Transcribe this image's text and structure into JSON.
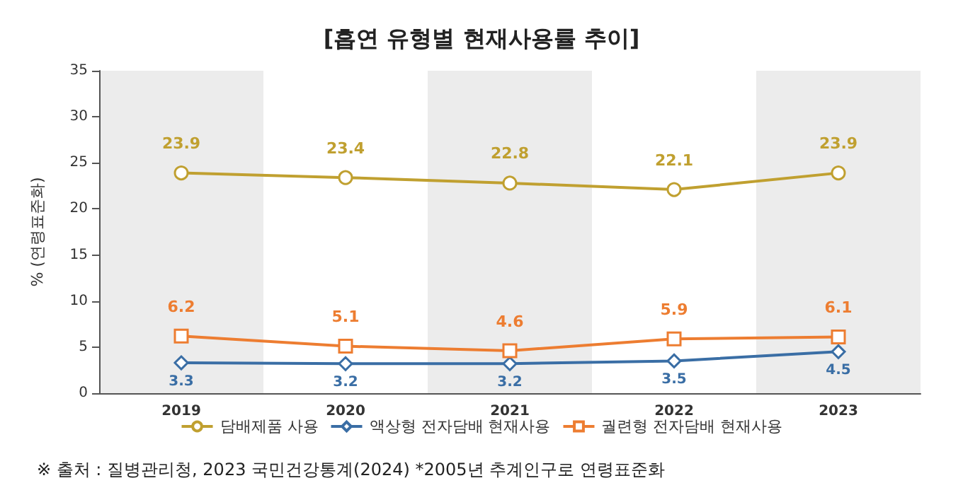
{
  "chart_data": {
    "type": "line",
    "title": "[흡연 유형별 현재사용률 추이]",
    "ylabel": "% (연령표준화)",
    "categories": [
      "2019",
      "2020",
      "2021",
      "2022",
      "2023"
    ],
    "series": [
      {
        "name": "담배제품 사용",
        "color": "#c0a030",
        "marker": "circle",
        "values": [
          23.9,
          23.4,
          22.8,
          22.1,
          23.9
        ]
      },
      {
        "name": "액상형 전자담배 현재사용",
        "color": "#3a6ea5",
        "marker": "diamond",
        "values": [
          3.3,
          3.2,
          3.2,
          3.5,
          4.5
        ]
      },
      {
        "name": "궐련형 전자담배 현재사용",
        "color": "#ed7d31",
        "marker": "square",
        "values": [
          6.2,
          5.1,
          4.6,
          5.9,
          6.1
        ]
      }
    ],
    "ylim": [
      0,
      35
    ],
    "yticks": [
      0,
      5,
      10,
      15,
      20,
      25,
      30,
      35
    ],
    "grid": false,
    "legend": "bottom",
    "data_labels": true,
    "bands": [
      {
        "axis": "x",
        "from": "2019",
        "to": "2019",
        "color": "#ececec"
      },
      {
        "axis": "x",
        "from": "2021",
        "to": "2021",
        "color": "#ececec"
      },
      {
        "axis": "x",
        "from": "2023",
        "to": "2023",
        "color": "#ececec"
      }
    ],
    "annotations": [
      "※ 출처 : 질병관리청, 2023 국민건강통계(2024) *2005년 추계인구로 연령표준화"
    ]
  }
}
